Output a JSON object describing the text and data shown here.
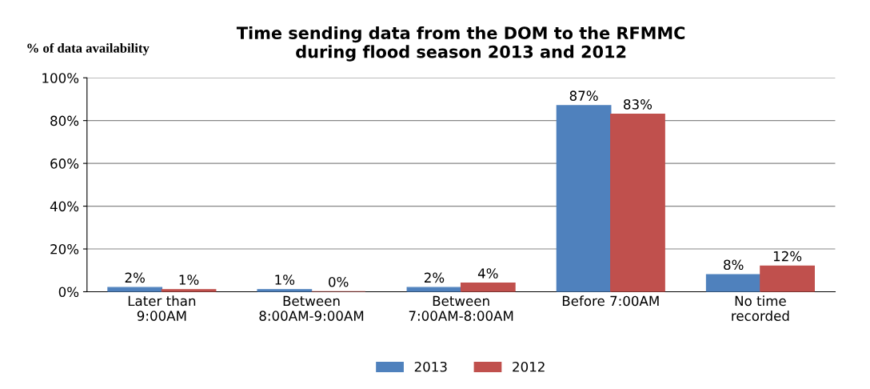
{
  "chart_data": {
    "type": "bar",
    "title": "Time sending data from the DOM to the RFMMC\nduring flood season 2013 and 2012",
    "ylabel": "% of data availability",
    "categories": [
      "Later than\n9:00AM",
      "Between\n8:00AM-9:00AM",
      "Between\n7:00AM-8:00AM",
      "Before 7:00AM",
      "No time\nrecorded"
    ],
    "series": [
      {
        "name": "2013",
        "color": "#4f81bd",
        "values": [
          2,
          1,
          2,
          87,
          8
        ],
        "value_labels": [
          "2%",
          "1%",
          "2%",
          "87%",
          "8%"
        ]
      },
      {
        "name": "2012",
        "color": "#c0504d",
        "values": [
          1,
          0,
          4,
          83,
          12
        ],
        "value_labels": [
          "1%",
          "0%",
          "4%",
          "83%",
          "12%"
        ]
      }
    ],
    "ylim": [
      0,
      100
    ],
    "yticks": [
      {
        "value": 0,
        "label": "0%"
      },
      {
        "value": 20,
        "label": "20%"
      },
      {
        "value": 40,
        "label": "40%"
      },
      {
        "value": 60,
        "label": "60%"
      },
      {
        "value": 80,
        "label": "80%"
      },
      {
        "value": 100,
        "label": "100%"
      }
    ],
    "grid": "y",
    "legend": "bottom"
  }
}
